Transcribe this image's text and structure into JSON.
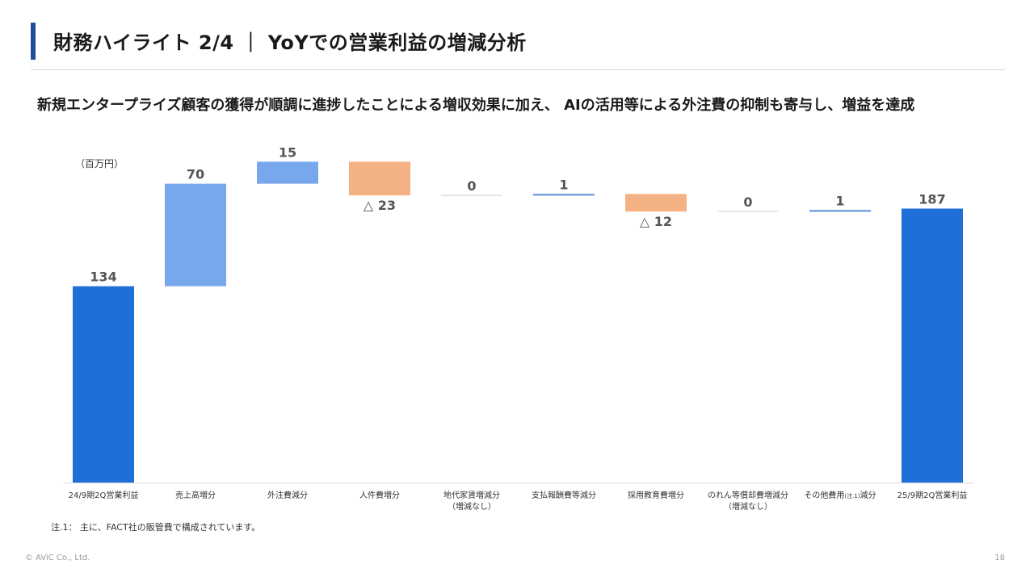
{
  "slide": {
    "title": "財務ハイライト 2/4 ｜ YoYでの営業利益の増減分析",
    "headline": "新規エンタープライズ顧客の獲得が順調に進捗したことによる増収効果に加え、 AIの活用等による外注費の抑制も寄与し、増益を達成",
    "unit_label": "（百万円）",
    "note": "注.1： 主に、FACT社の販管費で構成されています。",
    "copyright": "© AViC Co., Ltd.",
    "page_number": "18"
  },
  "colors": {
    "total": "#1f6fd9",
    "increase": "#79a7ec",
    "decrease": "#f4b183",
    "label": "#555555",
    "title_accent": "#1f4e9e"
  },
  "chart_data": {
    "type": "waterfall",
    "unit": "百万円",
    "ylim": [
      0,
      200
    ],
    "grid": false,
    "bars": [
      {
        "category": "24/9期2Q営業利益",
        "category_sub": "",
        "value": 134,
        "kind": "total",
        "label": "134"
      },
      {
        "category": "売上高増分",
        "category_sub": "",
        "value": 70,
        "kind": "increase",
        "label": "70"
      },
      {
        "category": "外注費減分",
        "category_sub": "",
        "value": 15,
        "kind": "increase",
        "label": "15"
      },
      {
        "category": "人件費増分",
        "category_sub": "",
        "value": -23,
        "kind": "decrease",
        "label": "△ 23"
      },
      {
        "category": "地代家賃増減分",
        "category_sub": "（増減なし）",
        "value": 0,
        "kind": "zero",
        "label": "0"
      },
      {
        "category": "支払報酬費等減分",
        "category_sub": "",
        "value": 1,
        "kind": "increase",
        "label": "1"
      },
      {
        "category": "採用教育費増分",
        "category_sub": "",
        "value": -12,
        "kind": "decrease",
        "label": "△ 12"
      },
      {
        "category": "のれん等償却費増減分",
        "category_sub": "（増減なし）",
        "value": 0,
        "kind": "zero",
        "label": "0"
      },
      {
        "category": "その他費用",
        "category_note": "(注.1)",
        "category_suffix": "減分",
        "category_sub": "",
        "value": 1,
        "kind": "increase",
        "label": "1"
      },
      {
        "category": "25/9期2Q営業利益",
        "category_sub": "",
        "value": 187,
        "kind": "total",
        "label": "187"
      }
    ]
  }
}
